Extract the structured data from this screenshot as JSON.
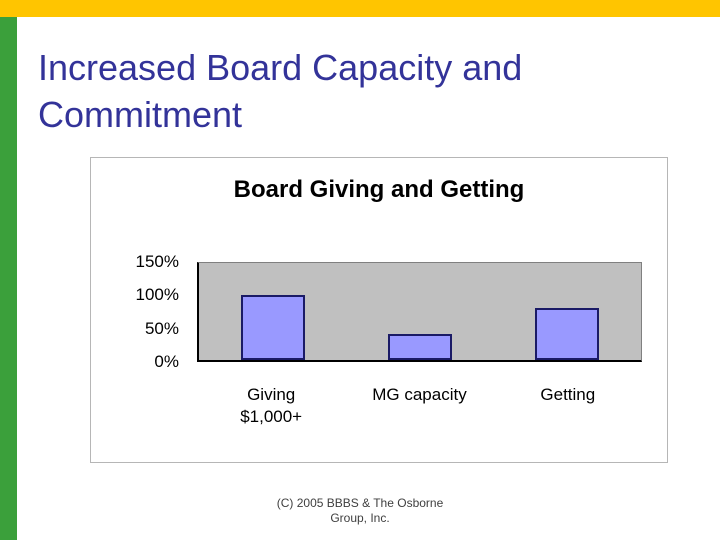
{
  "slide": {
    "title_line1": "Increased Board Capacity and",
    "title_line2": "Commitment"
  },
  "colors": {
    "top_bar": "#FFC500",
    "left_bar": "#3BA03B",
    "title_text": "#333399"
  },
  "chart_data": {
    "type": "bar",
    "title": "Board Giving and Getting",
    "categories": [
      "Giving\n$1,000+",
      "MG capacity",
      "Getting"
    ],
    "values": [
      100,
      40,
      80
    ],
    "unit": "%",
    "ylim": [
      0,
      150
    ],
    "yticks": [
      "150%",
      "100%",
      "50%",
      "0%"
    ],
    "bar_color": "#9999FF",
    "plot_bg": "#C0C0C0",
    "grid": false,
    "legend": "none"
  },
  "footer": {
    "line1": "(C) 2005 BBBS & The Osborne",
    "line2": "Group, Inc."
  }
}
